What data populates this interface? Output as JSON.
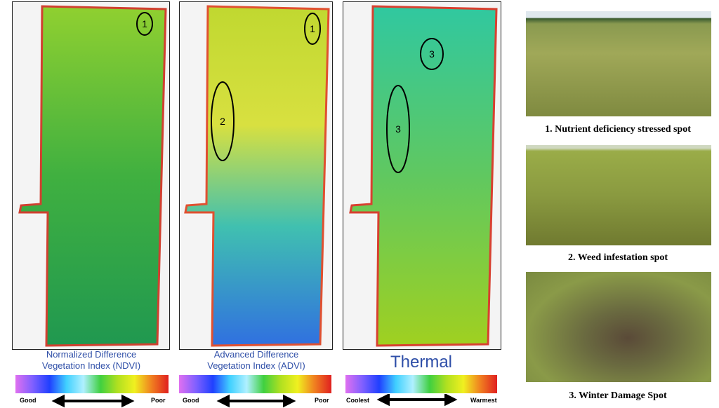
{
  "panels": [
    {
      "caption": "Normalized Difference Vegetation Index (NDVI)",
      "scale_low": "Good",
      "scale_high": "Poor",
      "markers": [
        "1"
      ]
    },
    {
      "caption": "Advanced Difference Vegetation Index (ADVI)",
      "scale_low": "Good",
      "scale_high": "Poor",
      "markers": [
        "1",
        "2"
      ]
    },
    {
      "caption": "Thermal",
      "scale_low": "Coolest",
      "scale_high": "Warmest",
      "markers": [
        "3",
        "3"
      ]
    }
  ],
  "photos": [
    {
      "caption": "1. Nutrient deficiency stressed spot"
    },
    {
      "caption": "2. Weed infestation spot"
    },
    {
      "caption": "3. Winter Damage Spot"
    }
  ]
}
